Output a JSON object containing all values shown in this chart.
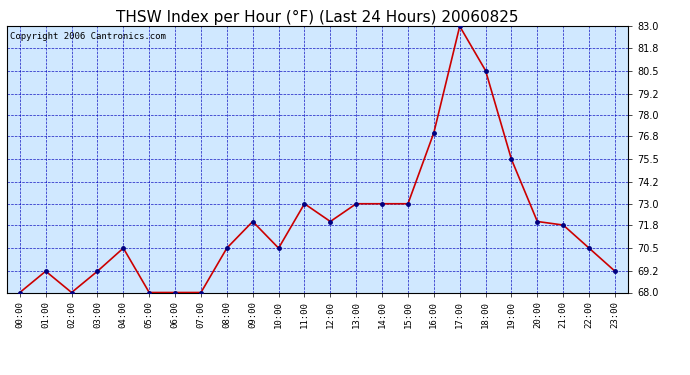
{
  "title": "THSW Index per Hour (°F) (Last 24 Hours) 20060825",
  "copyright": "Copyright 2006 Cantronics.com",
  "hours": [
    "00:00",
    "01:00",
    "02:00",
    "03:00",
    "04:00",
    "05:00",
    "06:00",
    "07:00",
    "08:00",
    "09:00",
    "10:00",
    "11:00",
    "12:00",
    "13:00",
    "14:00",
    "15:00",
    "16:00",
    "17:00",
    "18:00",
    "19:00",
    "20:00",
    "21:00",
    "22:00",
    "23:00"
  ],
  "values": [
    68.0,
    69.2,
    68.0,
    69.2,
    70.5,
    68.0,
    68.0,
    68.0,
    70.5,
    72.0,
    70.5,
    73.0,
    72.0,
    73.0,
    73.0,
    73.0,
    77.0,
    83.0,
    80.5,
    75.5,
    72.0,
    71.8,
    70.5,
    69.2
  ],
  "ylim": [
    68.0,
    83.0
  ],
  "yticks": [
    68.0,
    69.2,
    70.5,
    71.8,
    73.0,
    74.2,
    75.5,
    76.8,
    78.0,
    79.2,
    80.5,
    81.8,
    83.0
  ],
  "line_color": "#cc0000",
  "marker_color": "#000080",
  "bg_color": "#d0e8ff",
  "grid_color": "#0000bb",
  "title_fontsize": 11,
  "copyright_fontsize": 6.5
}
